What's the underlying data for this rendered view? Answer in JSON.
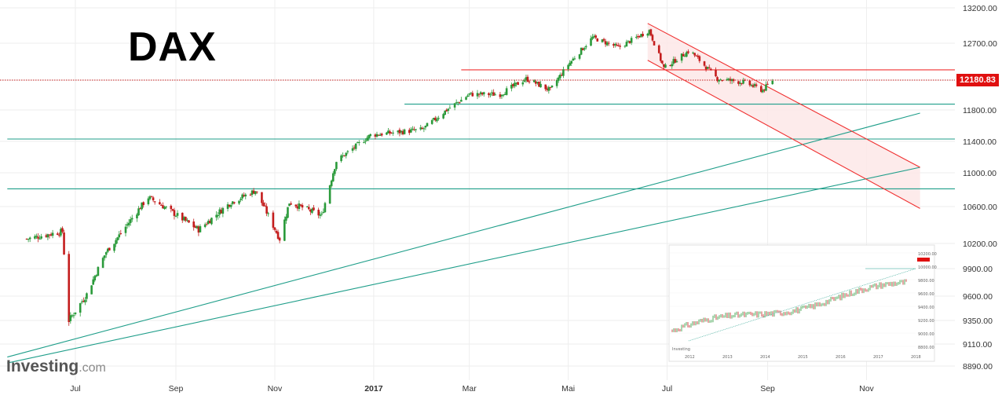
{
  "header": {
    "title": "DAX"
  },
  "brand": {
    "name_bold": "Investing",
    "name_suffix": ".com"
  },
  "last_price": {
    "label": "12180.83",
    "value": 12180.83
  },
  "colors": {
    "up": "#2a9a3a",
    "down": "#c41d1d",
    "last_price": "#e01010",
    "channel_line": "#f03030",
    "channel_fill": "#fde8e8",
    "support_line": "#1f9e8a",
    "grid": "#eeeeee"
  },
  "chart_data": {
    "type": "candlestick",
    "title": "DAX",
    "yaxis": {
      "side": "right",
      "ticks": [
        13200,
        12700,
        12180.83,
        11800,
        11400,
        11000,
        10600,
        10200,
        9900,
        9600,
        9350,
        9110,
        8890
      ],
      "tick_labels": [
        "13200.00",
        "12700.00",
        "12180.83",
        "11800.00",
        "11400.00",
        "11000.00",
        "10600.00",
        "10200.00",
        "9900.00",
        "9600.00",
        "9350.00",
        "9110.00",
        "8890.00"
      ]
    },
    "xaxis": {
      "tick_labels": [
        "Jul",
        "Sep",
        "Nov",
        "2017",
        "Mar",
        "Mai",
        "Jul",
        "Sep",
        "Nov"
      ]
    },
    "grid": true,
    "last_price": 12180.83,
    "horizontal_lines": [
      {
        "name": "last-price",
        "value": 12180.83,
        "style": "dotted",
        "color": "#c41d1d"
      },
      {
        "name": "resistance",
        "value": 12325,
        "from": "2017-02-24",
        "color": "#f03030"
      },
      {
        "name": "support-1",
        "value": 11875,
        "from": "2017-01-20",
        "color": "#1f9e8a"
      },
      {
        "name": "support-2",
        "value": 11430,
        "from": "2016-05-20",
        "color": "#1f9e8a"
      },
      {
        "name": "support-3",
        "value": 10810,
        "from": "2016-05-20",
        "color": "#1f9e8a"
      }
    ],
    "trend_channel": {
      "upper": [
        [
          "2017-06-19",
          12980
        ],
        [
          "2017-12-04",
          11070
        ]
      ],
      "lower": [
        [
          "2017-06-19",
          12460
        ],
        [
          "2017-12-04",
          10580
        ]
      ]
    },
    "trendlines": [
      {
        "from": [
          "2016-05-20",
          8980
        ],
        "to": [
          "2017-12-04",
          11760
        ]
      },
      {
        "from": [
          "2016-05-20",
          8920
        ],
        "to": [
          "2017-12-04",
          11070
        ]
      }
    ],
    "ohlc_keypoints": [
      [
        "2016-06-01",
        10250
      ],
      [
        "2016-06-23",
        10330
      ],
      [
        "2016-06-27",
        9350
      ],
      [
        "2016-07-08",
        9620
      ],
      [
        "2016-07-20",
        10100
      ],
      [
        "2016-08-15",
        10710
      ],
      [
        "2016-09-15",
        10350
      ],
      [
        "2016-10-05",
        10650
      ],
      [
        "2016-10-20",
        10790
      ],
      [
        "2016-11-04",
        10250
      ],
      [
        "2016-11-10",
        10650
      ],
      [
        "2016-11-30",
        10500
      ],
      [
        "2016-12-09",
        11150
      ],
      [
        "2016-12-30",
        11480
      ],
      [
        "2017-01-31",
        11550
      ],
      [
        "2017-02-15",
        11800
      ],
      [
        "2017-03-01",
        12000
      ],
      [
        "2017-03-20",
        12000
      ],
      [
        "2017-04-05",
        12200
      ],
      [
        "2017-04-20",
        12050
      ],
      [
        "2017-05-01",
        12400
      ],
      [
        "2017-05-16",
        12780
      ],
      [
        "2017-06-01",
        12640
      ],
      [
        "2017-06-20",
        12880
      ],
      [
        "2017-06-29",
        12350
      ],
      [
        "2017-07-15",
        12600
      ],
      [
        "2017-08-01",
        12200
      ],
      [
        "2017-08-18",
        12150
      ],
      [
        "2017-08-29",
        12050
      ],
      [
        "2017-09-04",
        12180
      ]
    ]
  },
  "inset": {
    "caption": "Investing",
    "yticks": [
      "10200.00",
      "10000.00",
      "9800.00",
      "9600.00",
      "9400.00",
      "9200.00",
      "9000.00",
      "8800.00"
    ],
    "xticks": [
      "2012",
      "2013",
      "2014",
      "2015",
      "2016",
      "2017",
      "2018"
    ]
  }
}
